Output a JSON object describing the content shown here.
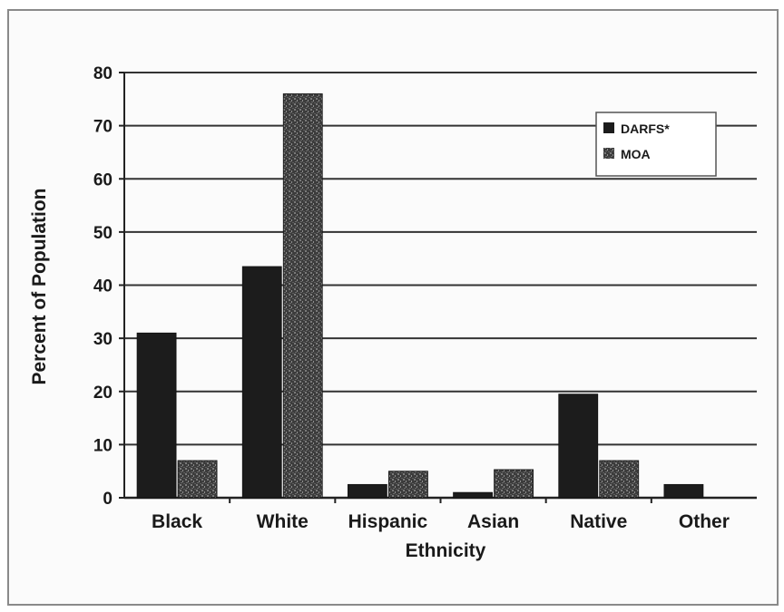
{
  "chart_data": {
    "type": "bar",
    "title": "",
    "xlabel": "Ethnicity",
    "ylabel": "Percent of Population",
    "ylim": [
      0,
      80
    ],
    "yticks": [
      0,
      10,
      20,
      30,
      40,
      50,
      60,
      70,
      80
    ],
    "grid": true,
    "legend_position": "top-right",
    "categories": [
      "Black",
      "White",
      "Hispanic",
      "Asian",
      "Native",
      "Other"
    ],
    "series": [
      {
        "name": "DARFS*",
        "color": "#1c1c1c",
        "values": [
          31,
          43.5,
          2.5,
          1,
          19.5,
          2.5
        ]
      },
      {
        "name": "MOA",
        "color": "#4a4a4a",
        "values": [
          7,
          76,
          5,
          5.3,
          7,
          0
        ]
      }
    ]
  }
}
